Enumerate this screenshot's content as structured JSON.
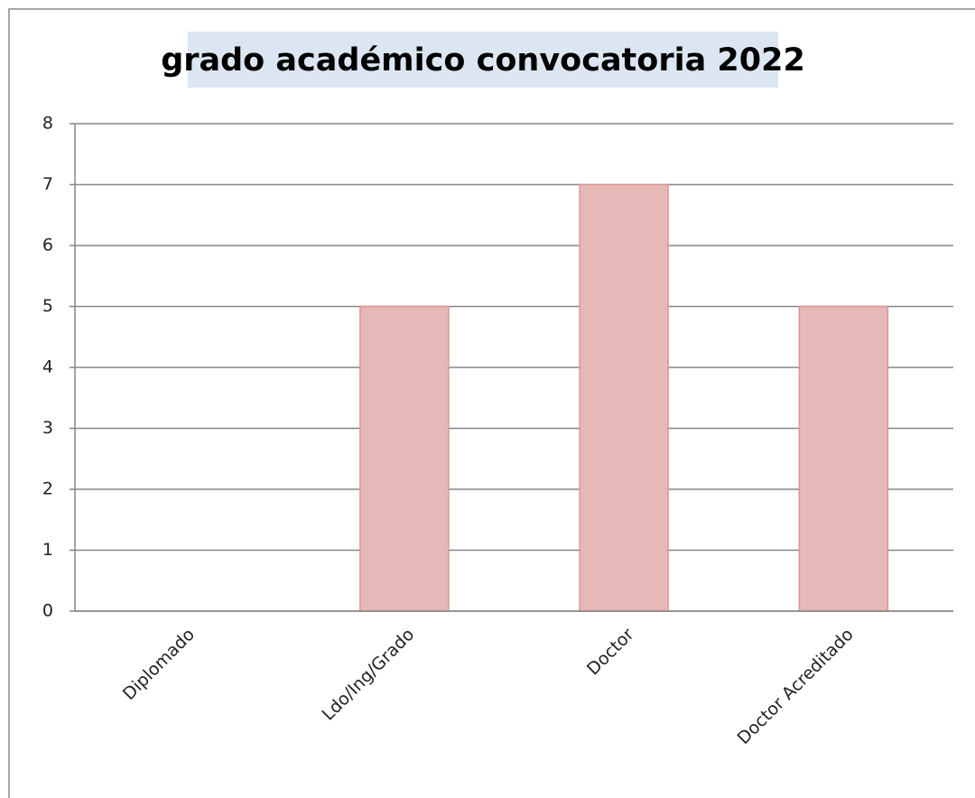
{
  "chart_data": {
    "type": "bar",
    "title": "grado académico convocatoria 2022",
    "categories": [
      "Diplomado",
      "Ldo/Ing/Grado",
      "Doctor",
      "Doctor Acreditado"
    ],
    "values": [
      0,
      5,
      7,
      5
    ],
    "color": "#e6b8b7",
    "ylim": [
      0,
      8
    ],
    "yticks": [
      0,
      1,
      2,
      3,
      4,
      5,
      6,
      7,
      8
    ],
    "grid": true
  }
}
